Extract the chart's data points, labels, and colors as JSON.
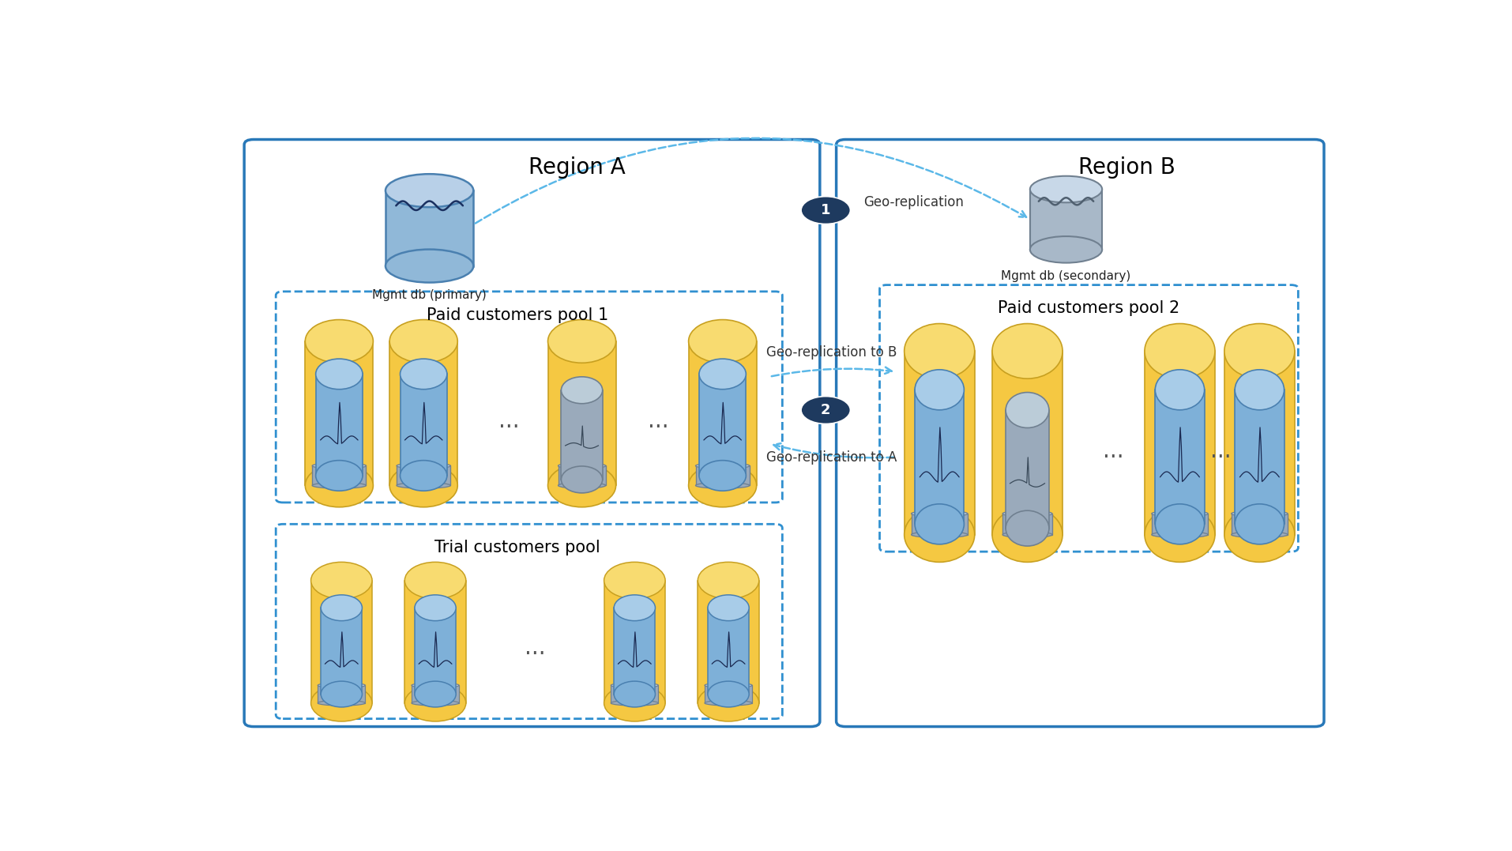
{
  "region_a_label": "Region A",
  "region_b_label": "Region B",
  "mgmt_primary_label": "Mgmt db (primary)",
  "mgmt_secondary_label": "Mgmt db (secondary)",
  "paid_pool1_label": "Paid customers pool 1",
  "paid_pool2_label": "Paid customers pool 2",
  "trial_pool_label": "Trial customers pool",
  "geo_replication_label": "Geo-replication",
  "geo_replication_to_b_label": "Geo-replication to B",
  "geo_replication_to_a_label": "Geo-replication to A",
  "region_box_color": "#2878B8",
  "dashed_box_color": "#3090D0",
  "bg_color": "#FFFFFF",
  "arrow_color": "#5BB8E8",
  "step_circle_color": "#1E3A5F",
  "yellow_body": "#F5C842",
  "yellow_top": "#F8DB70",
  "yellow_edge": "#C8A020",
  "blue_body": "#7EB0D8",
  "blue_top": "#A8CCE8",
  "blue_edge": "#4A80B0",
  "gray_body": "#9AAABB",
  "gray_top": "#BBCCD8",
  "gray_edge": "#708090",
  "mgmt_blue_body": "#90B8D8",
  "mgmt_blue_top": "#B8D0E8",
  "mgmt_gray_body": "#A8B8C8",
  "mgmt_gray_top": "#C8D8E8",
  "wave_color_blue": "#1A3060",
  "wave_color_gray": "#506070",
  "font_region": 20,
  "font_pool": 15,
  "font_label": 12,
  "font_geo": 12
}
